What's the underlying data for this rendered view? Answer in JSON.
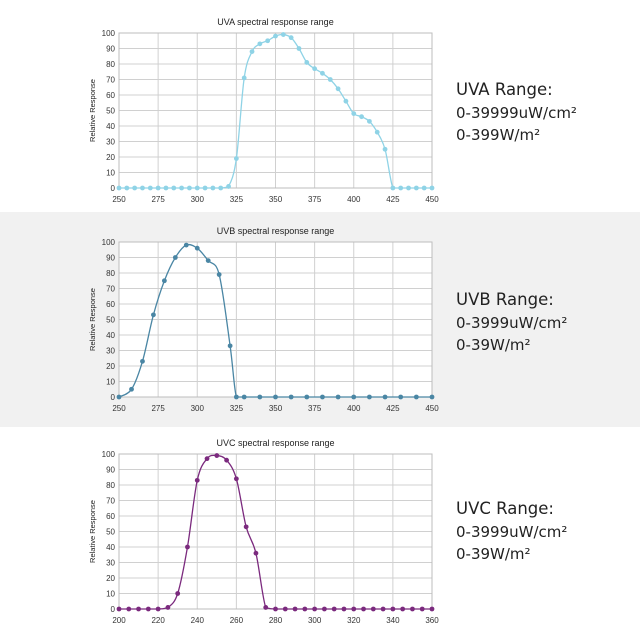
{
  "chart_data": [
    {
      "type": "line",
      "title": "UVA spectral response range",
      "xlabel": "",
      "ylabel": "Relative Response",
      "xlim": [
        250,
        450
      ],
      "ylim": [
        0,
        100
      ],
      "xticks": [
        250,
        275,
        300,
        325,
        350,
        375,
        400,
        425,
        450
      ],
      "yticks": [
        0,
        10,
        20,
        30,
        40,
        50,
        60,
        70,
        80,
        90,
        100
      ],
      "grid": true,
      "color": "#8fd3e6",
      "series": [
        {
          "x": [
            250,
            255,
            260,
            265,
            270,
            275,
            280,
            285,
            290,
            295,
            300,
            305,
            310,
            315,
            320,
            325,
            330,
            335,
            340,
            345,
            350,
            355,
            360,
            365,
            370,
            375,
            380,
            385,
            390,
            395,
            400,
            405,
            410,
            415,
            420,
            425,
            430,
            435,
            440,
            445,
            450
          ],
          "y": [
            0,
            0,
            0,
            0,
            0,
            0,
            0,
            0,
            0,
            0,
            0,
            0,
            0,
            0,
            1,
            19,
            71,
            88,
            93,
            95,
            98,
            99,
            97,
            90,
            81,
            77,
            74,
            70,
            64,
            56,
            48,
            46,
            43,
            36,
            25,
            0,
            0,
            0,
            0,
            0,
            0
          ]
        }
      ]
    },
    {
      "type": "line",
      "title": "UVB spectral response range",
      "xlabel": "",
      "ylabel": "Relative Response",
      "xlim": [
        250,
        450
      ],
      "ylim": [
        0,
        100
      ],
      "xticks": [
        250,
        275,
        300,
        325,
        350,
        375,
        400,
        425,
        450
      ],
      "yticks": [
        0,
        10,
        20,
        30,
        40,
        50,
        60,
        70,
        80,
        90,
        100
      ],
      "grid": true,
      "color": "#4a86a4",
      "series": [
        {
          "x": [
            250,
            258,
            265,
            272,
            279,
            286,
            293,
            300,
            307,
            314,
            321,
            325,
            330,
            340,
            350,
            360,
            370,
            380,
            390,
            400,
            410,
            420,
            430,
            440,
            450
          ],
          "y": [
            0,
            5,
            23,
            53,
            75,
            90,
            98,
            96,
            88,
            79,
            33,
            0,
            0,
            0,
            0,
            0,
            0,
            0,
            0,
            0,
            0,
            0,
            0,
            0,
            0
          ]
        }
      ]
    },
    {
      "type": "line",
      "title": "UVC spectral response range",
      "xlabel": "",
      "ylabel": "Relative Response",
      "xlim": [
        200,
        360
      ],
      "ylim": [
        0,
        100
      ],
      "xticks": [
        200,
        220,
        240,
        260,
        280,
        300,
        320,
        340,
        360
      ],
      "yticks": [
        0,
        10,
        20,
        30,
        40,
        50,
        60,
        70,
        80,
        90,
        100
      ],
      "grid": true,
      "color": "#7b2a7e",
      "series": [
        {
          "x": [
            200,
            205,
            210,
            215,
            220,
            225,
            230,
            235,
            240,
            245,
            250,
            255,
            260,
            265,
            270,
            275,
            280,
            285,
            290,
            295,
            300,
            305,
            310,
            315,
            320,
            325,
            330,
            335,
            340,
            345,
            350,
            355,
            360
          ],
          "y": [
            0,
            0,
            0,
            0,
            0,
            1,
            10,
            40,
            83,
            97,
            99,
            96,
            84,
            53,
            36,
            1,
            0,
            0,
            0,
            0,
            0,
            0,
            0,
            0,
            0,
            0,
            0,
            0,
            0,
            0,
            0,
            0,
            0
          ]
        }
      ]
    }
  ],
  "ranges": [
    {
      "title": "UVA Range:",
      "line1": "0-39999uW/cm²",
      "line2": "0-399W/m²"
    },
    {
      "title": "UVB Range:",
      "line1": "0-3999uW/cm²",
      "line2": "0-39W/m²"
    },
    {
      "title": "UVC Range:",
      "line1": "0-3999uW/cm²",
      "line2": "0-39W/m²"
    }
  ]
}
